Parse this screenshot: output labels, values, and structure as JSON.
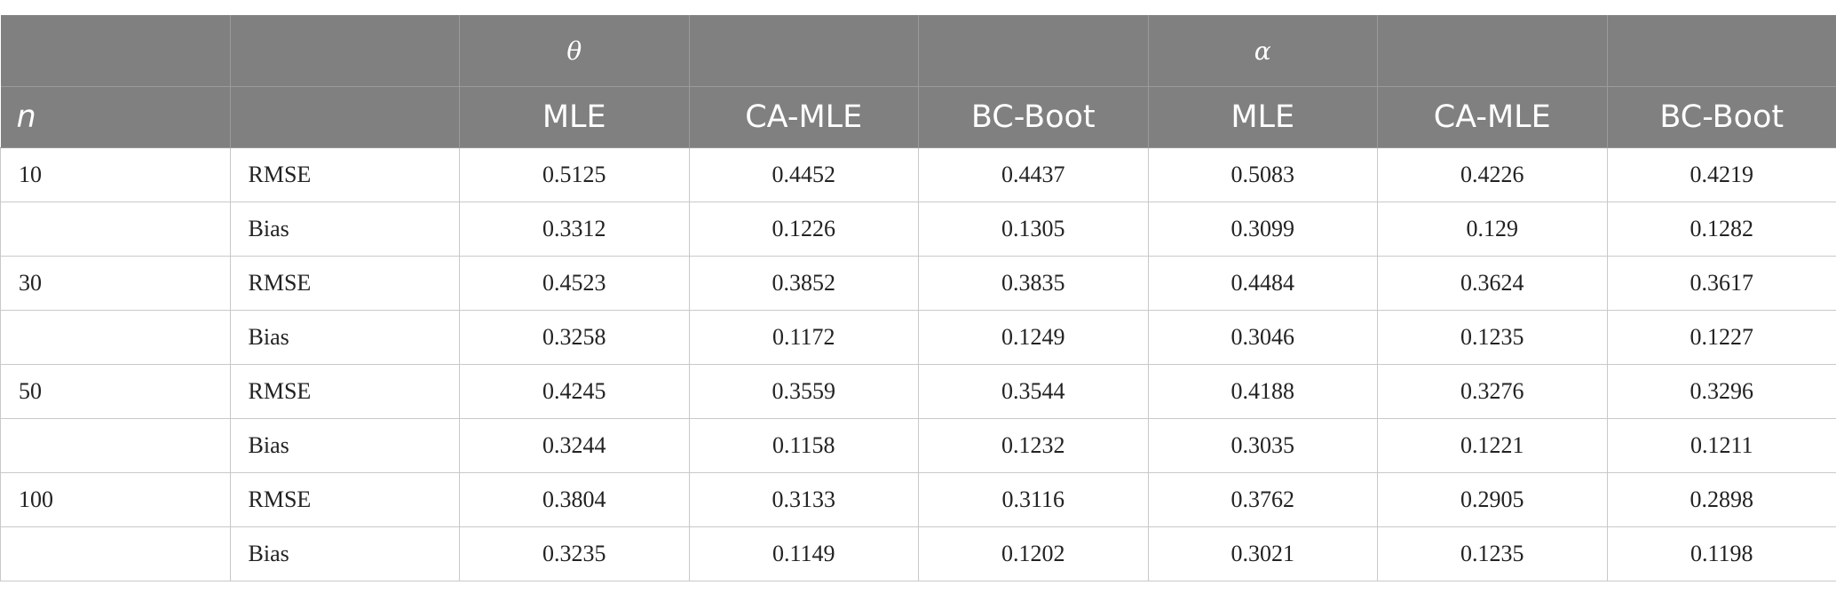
{
  "table": {
    "param_row": [
      "",
      "",
      "θ",
      "",
      "",
      "α",
      "",
      ""
    ],
    "method_row": [
      "n",
      "",
      "MLE",
      "CA-MLE",
      "BC-Boot",
      "MLE",
      "CA-MLE",
      "BC-Boot"
    ],
    "rows": [
      [
        "10",
        "RMSE",
        "0.5125",
        "0.4452",
        "0.4437",
        "0.5083",
        "0.4226",
        "0.4219"
      ],
      [
        "",
        "Bias",
        "0.3312",
        "0.1226",
        "0.1305",
        "0.3099",
        "0.129",
        "0.1282"
      ],
      [
        "30",
        "RMSE",
        "0.4523",
        "0.3852",
        "0.3835",
        "0.4484",
        "0.3624",
        "0.3617"
      ],
      [
        "",
        "Bias",
        "0.3258",
        "0.1172",
        "0.1249",
        "0.3046",
        "0.1235",
        "0.1227"
      ],
      [
        "50",
        "RMSE",
        "0.4245",
        "0.3559",
        "0.3544",
        "0.4188",
        "0.3276",
        "0.3296"
      ],
      [
        "",
        "Bias",
        "0.3244",
        "0.1158",
        "0.1232",
        "0.3035",
        "0.1221",
        "0.1211"
      ],
      [
        "100",
        "RMSE",
        "0.3804",
        "0.3133",
        "0.3116",
        "0.3762",
        "0.2905",
        "0.2898"
      ],
      [
        "",
        "Bias",
        "0.3235",
        "0.1149",
        "0.1202",
        "0.3021",
        "0.1235",
        "0.1198"
      ]
    ]
  }
}
